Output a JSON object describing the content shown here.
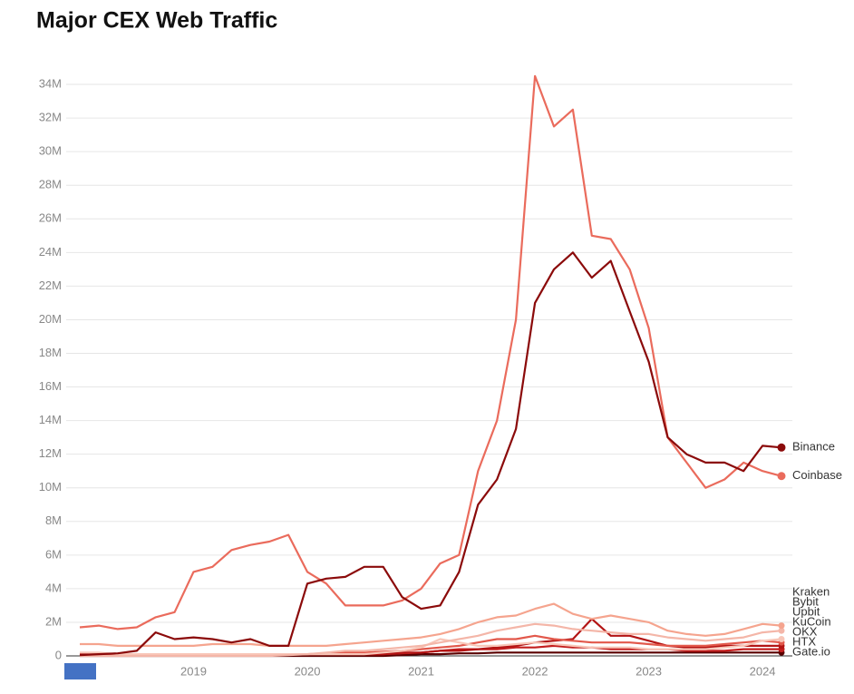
{
  "chart_data": {
    "type": "line",
    "title": "Major CEX Web Traffic",
    "categories": [
      null,
      null,
      null,
      null,
      null,
      null,
      "2019",
      null,
      null,
      null,
      null,
      null,
      "2020",
      null,
      null,
      null,
      null,
      null,
      "2021",
      null,
      null,
      null,
      null,
      null,
      "2022",
      null,
      null,
      null,
      null,
      null,
      "2023",
      null,
      null,
      null,
      null,
      null,
      "2024",
      null
    ],
    "ylim": [
      0,
      36
    ],
    "yticks": [
      0,
      {
        "value": 2,
        "label": "2M"
      },
      {
        "value": 4,
        "label": "4M"
      },
      {
        "value": 6,
        "label": "6M"
      },
      {
        "value": 8,
        "label": "8M"
      },
      {
        "value": 10,
        "label": "10M"
      },
      {
        "value": 12,
        "label": "12M"
      },
      {
        "value": 14,
        "label": "14M"
      },
      {
        "value": 16,
        "label": "16M"
      },
      {
        "value": 18,
        "label": "18M"
      },
      {
        "value": 20,
        "label": "20M"
      },
      {
        "value": 22,
        "label": "22M"
      },
      {
        "value": 24,
        "label": "24M"
      },
      {
        "value": 26,
        "label": "26M"
      },
      {
        "value": 28,
        "label": "28M"
      },
      {
        "value": 30,
        "label": "30M"
      },
      {
        "value": 32,
        "label": "32M"
      },
      {
        "value": 34,
        "label": "34M"
      }
    ],
    "grid": true,
    "series": [
      {
        "name": "Gate.io",
        "color": "#5a0000",
        "values": [
          0,
          0,
          0,
          0,
          0,
          0,
          0,
          0,
          0,
          0,
          0,
          0,
          0,
          0,
          0,
          0,
          0,
          0.05,
          0.1,
          0.1,
          0.15,
          0.15,
          0.2,
          0.2,
          0.2,
          0.2,
          0.2,
          0.2,
          0.2,
          0.2,
          0.2,
          0.2,
          0.2,
          0.2,
          0.2,
          0.2,
          0.2,
          0.2
        ]
      },
      {
        "name": "HTX",
        "color": "#c41e1e",
        "values": [
          0.1,
          0.1,
          0.1,
          0.1,
          0.1,
          0.1,
          0.1,
          0.1,
          0.1,
          0.1,
          0.1,
          0.1,
          0.1,
          0.1,
          0.1,
          0.1,
          0.1,
          0.15,
          0.2,
          0.3,
          0.4,
          0.4,
          0.4,
          0.5,
          0.5,
          0.6,
          0.5,
          0.5,
          0.4,
          0.4,
          0.4,
          0.4,
          0.3,
          0.3,
          0.3,
          0.4,
          0.4,
          0.4
        ]
      },
      {
        "name": "OKX",
        "color": "#b31414",
        "values": [
          0.1,
          0.1,
          0.1,
          0.1,
          0.1,
          0.1,
          0.1,
          0.1,
          0.1,
          0.1,
          0.1,
          0.1,
          0.1,
          0.1,
          0.1,
          0.1,
          0.1,
          0.2,
          0.2,
          0.3,
          0.3,
          0.4,
          0.5,
          0.6,
          0.8,
          0.9,
          1.0,
          2.2,
          1.2,
          1.2,
          0.9,
          0.6,
          0.5,
          0.5,
          0.6,
          0.6,
          0.6,
          0.6
        ]
      },
      {
        "name": "KuCoin",
        "color": "#e2584b",
        "values": [
          0.05,
          0.05,
          0.05,
          0.05,
          0.05,
          0.05,
          0.05,
          0.05,
          0.05,
          0.05,
          0.1,
          0.1,
          0.1,
          0.15,
          0.2,
          0.2,
          0.25,
          0.3,
          0.4,
          0.5,
          0.6,
          0.8,
          1.0,
          1.0,
          1.2,
          1.0,
          0.9,
          0.8,
          0.8,
          0.8,
          0.7,
          0.6,
          0.6,
          0.6,
          0.7,
          0.8,
          0.9,
          0.8
        ]
      },
      {
        "name": "Upbit",
        "color": "#f8c6b8",
        "values": [
          0.2,
          0.2,
          0.1,
          0.1,
          0.1,
          0.1,
          0.1,
          0.1,
          0.1,
          0.1,
          0.1,
          0.1,
          0.1,
          0.1,
          0.1,
          0.1,
          0.2,
          0.3,
          0.5,
          1.0,
          0.8,
          0.6,
          0.6,
          0.7,
          0.8,
          0.7,
          0.6,
          0.5,
          0.5,
          0.5,
          0.4,
          0.4,
          0.4,
          0.4,
          0.5,
          0.6,
          0.9,
          1.0
        ]
      },
      {
        "name": "Bybit",
        "color": "#f4b6a8",
        "values": [
          0,
          0,
          0,
          0,
          0,
          0,
          0,
          0,
          0,
          0,
          0,
          0.05,
          0.1,
          0.2,
          0.3,
          0.3,
          0.4,
          0.5,
          0.6,
          0.8,
          1.0,
          1.2,
          1.5,
          1.7,
          1.9,
          1.8,
          1.6,
          1.5,
          1.4,
          1.3,
          1.3,
          1.1,
          1.0,
          0.9,
          1.0,
          1.1,
          1.4,
          1.5
        ]
      },
      {
        "name": "Kraken",
        "color": "#f5a48e",
        "values": [
          0.7,
          0.7,
          0.6,
          0.6,
          0.6,
          0.6,
          0.6,
          0.7,
          0.7,
          0.7,
          0.6,
          0.6,
          0.6,
          0.6,
          0.7,
          0.8,
          0.9,
          1.0,
          1.1,
          1.3,
          1.6,
          2.0,
          2.3,
          2.4,
          2.8,
          3.1,
          2.5,
          2.2,
          2.4,
          2.2,
          2.0,
          1.5,
          1.3,
          1.2,
          1.3,
          1.6,
          1.9,
          1.8
        ]
      },
      {
        "name": "Coinbase",
        "color": "#ea6b5c",
        "values": [
          1.7,
          1.8,
          1.6,
          1.7,
          2.3,
          2.6,
          5.0,
          5.3,
          6.3,
          6.6,
          6.8,
          7.2,
          5.0,
          4.3,
          3.0,
          3.0,
          3.0,
          3.3,
          4.0,
          5.5,
          6.0,
          11,
          14,
          20,
          34.5,
          31.5,
          32.5,
          25,
          24.8,
          23,
          19.5,
          13,
          11.5,
          10,
          10.5,
          11.5,
          11,
          10.7
        ]
      },
      {
        "name": "Binance",
        "color": "#8b0a0a",
        "values": [
          0.05,
          0.1,
          0.15,
          0.3,
          1.4,
          1.0,
          1.1,
          1.0,
          0.8,
          1.0,
          0.6,
          0.6,
          4.3,
          4.6,
          4.7,
          5.3,
          5.3,
          3.5,
          2.8,
          3.0,
          5.0,
          9,
          10.5,
          13.5,
          21,
          23,
          24,
          22.5,
          23.5,
          20.5,
          17.5,
          13,
          12,
          11.5,
          11.5,
          11,
          12.5,
          12.4
        ]
      }
    ]
  }
}
